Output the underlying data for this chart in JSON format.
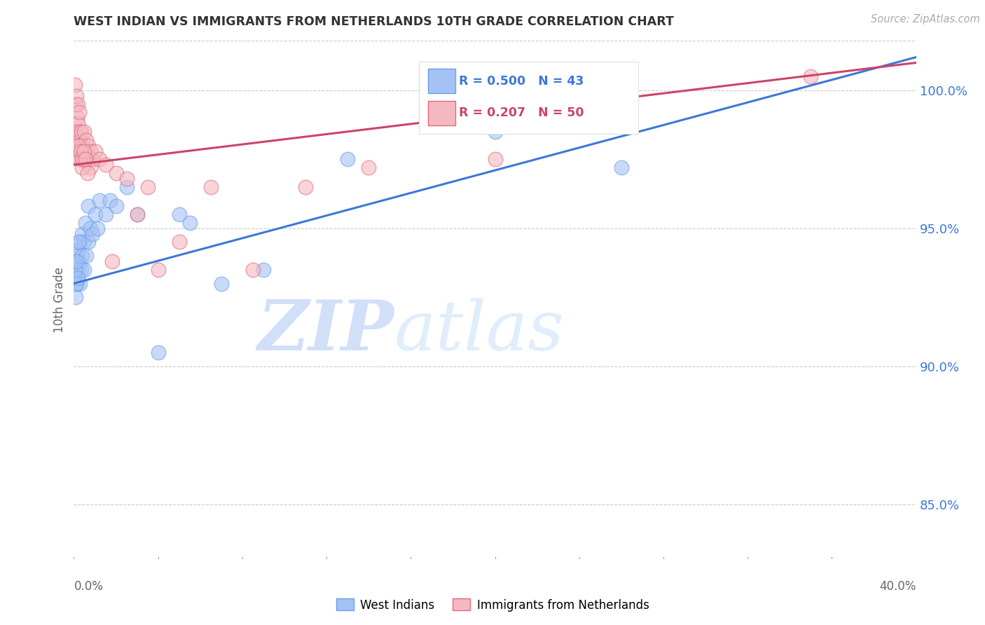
{
  "title": "WEST INDIAN VS IMMIGRANTS FROM NETHERLANDS 10TH GRADE CORRELATION CHART",
  "source": "Source: ZipAtlas.com",
  "ylabel": "10th Grade",
  "yticks": [
    85.0,
    90.0,
    95.0,
    100.0
  ],
  "xmin": 0.0,
  "xmax": 40.0,
  "ymin": 83.0,
  "ymax": 101.8,
  "blue_R": 0.5,
  "blue_N": 43,
  "pink_R": 0.207,
  "pink_N": 50,
  "legend_label_blue": "West Indians",
  "legend_label_pink": "Immigrants from Netherlands",
  "blue_color": "#a4c2f4",
  "pink_color": "#f4b8c1",
  "blue_edge_color": "#6d9eeb",
  "pink_edge_color": "#e06b7d",
  "blue_line_color": "#3c78d8",
  "pink_line_color": "#cc4466",
  "background_color": "#ffffff",
  "grid_color": "#cccccc",
  "title_color": "#333333",
  "axis_label_color": "#666666",
  "right_axis_color": "#3c78d8",
  "watermark_blue": "#c9daf8",
  "watermark_pink": "#d0e0f8",
  "blue_trend_y0": 93.0,
  "blue_trend_y1": 101.2,
  "pink_trend_y0": 97.3,
  "pink_trend_y1": 101.0,
  "blue_x": [
    0.05,
    0.1,
    0.1,
    0.15,
    0.15,
    0.2,
    0.2,
    0.25,
    0.3,
    0.3,
    0.35,
    0.4,
    0.4,
    0.5,
    0.5,
    0.55,
    0.6,
    0.7,
    0.7,
    0.8,
    0.9,
    1.0,
    1.1,
    1.2,
    1.5,
    1.7,
    2.0,
    2.5,
    3.0,
    4.0,
    5.0,
    5.5,
    7.0,
    9.0,
    13.0,
    20.0,
    24.0,
    26.0,
    0.05,
    0.08,
    0.12,
    0.18,
    0.22
  ],
  "blue_y": [
    93.8,
    92.5,
    93.3,
    93.0,
    94.0,
    93.5,
    94.2,
    93.8,
    93.0,
    94.5,
    93.5,
    94.0,
    94.8,
    93.5,
    94.5,
    95.2,
    94.0,
    95.8,
    94.5,
    95.0,
    94.8,
    95.5,
    95.0,
    96.0,
    95.5,
    96.0,
    95.8,
    96.5,
    95.5,
    90.5,
    95.5,
    95.2,
    93.0,
    93.5,
    97.5,
    98.5,
    99.0,
    97.2,
    93.5,
    93.0,
    93.8,
    93.2,
    94.5
  ],
  "pink_x": [
    0.05,
    0.08,
    0.1,
    0.12,
    0.15,
    0.15,
    0.18,
    0.2,
    0.2,
    0.25,
    0.25,
    0.3,
    0.3,
    0.35,
    0.4,
    0.4,
    0.45,
    0.5,
    0.5,
    0.6,
    0.6,
    0.7,
    0.7,
    0.8,
    0.8,
    0.9,
    1.0,
    1.2,
    1.5,
    2.0,
    2.5,
    3.0,
    3.5,
    5.0,
    6.5,
    8.5,
    11.0,
    14.0,
    20.0,
    35.0,
    0.22,
    0.28,
    0.32,
    0.38,
    0.42,
    0.48,
    0.55,
    0.65,
    1.8,
    4.0
  ],
  "pink_y": [
    100.2,
    99.5,
    98.5,
    99.8,
    99.0,
    98.0,
    99.5,
    98.8,
    97.8,
    98.5,
    99.2,
    98.2,
    97.5,
    98.5,
    97.5,
    98.0,
    97.8,
    98.5,
    97.8,
    97.5,
    98.2,
    97.5,
    98.0,
    97.8,
    97.2,
    97.5,
    97.8,
    97.5,
    97.3,
    97.0,
    96.8,
    95.5,
    96.5,
    94.5,
    96.5,
    93.5,
    96.5,
    97.2,
    97.5,
    100.5,
    98.0,
    97.5,
    97.8,
    97.2,
    97.5,
    97.8,
    97.5,
    97.0,
    93.8,
    93.5
  ]
}
